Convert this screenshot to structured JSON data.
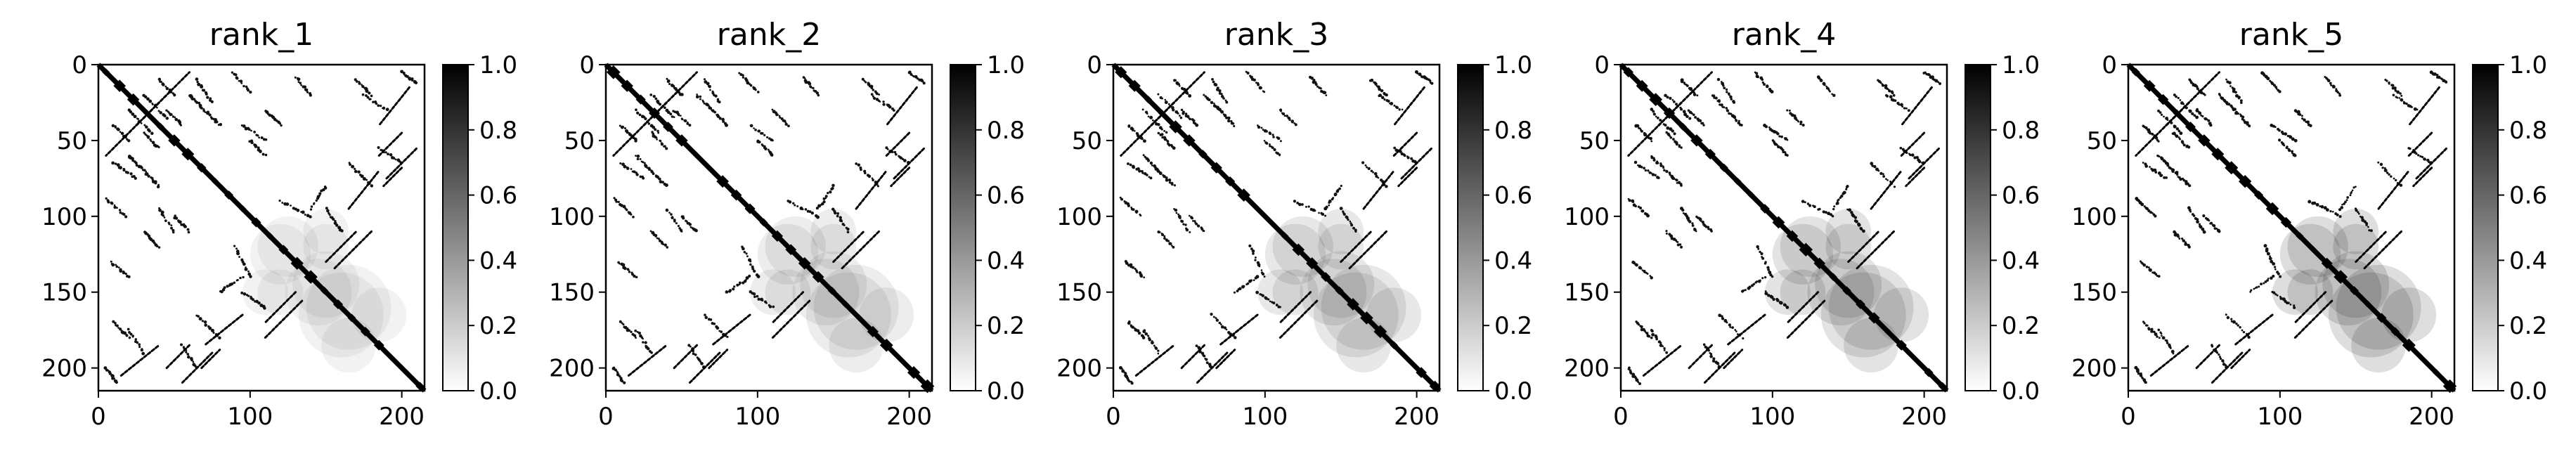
{
  "chart_data": [
    {
      "type": "heatmap",
      "title": "rank_1",
      "xlim": [
        0,
        215
      ],
      "ylim": [
        215,
        0
      ],
      "x_ticks": [
        0,
        100,
        200
      ],
      "y_ticks": [
        0,
        50,
        100,
        150,
        200
      ],
      "colorbar": {
        "range": [
          0.0,
          1.0
        ],
        "ticks": [
          "1.0",
          "0.8",
          "0.6",
          "0.4",
          "0.2",
          "0.0"
        ],
        "colormap": "gray_r"
      },
      "variant": 0
    },
    {
      "type": "heatmap",
      "title": "rank_2",
      "xlim": [
        0,
        215
      ],
      "ylim": [
        215,
        0
      ],
      "x_ticks": [
        0,
        100,
        200
      ],
      "y_ticks": [
        0,
        50,
        100,
        150,
        200
      ],
      "colorbar": {
        "range": [
          0.0,
          1.0
        ],
        "ticks": [
          "1.0",
          "0.8",
          "0.6",
          "0.4",
          "0.2",
          "0.0"
        ],
        "colormap": "gray_r"
      },
      "variant": 1
    },
    {
      "type": "heatmap",
      "title": "rank_3",
      "xlim": [
        0,
        215
      ],
      "ylim": [
        215,
        0
      ],
      "x_ticks": [
        0,
        100,
        200
      ],
      "y_ticks": [
        0,
        50,
        100,
        150,
        200
      ],
      "colorbar": {
        "range": [
          0.0,
          1.0
        ],
        "ticks": [
          "1.0",
          "0.8",
          "0.6",
          "0.4",
          "0.2",
          "0.0"
        ],
        "colormap": "gray_r"
      },
      "variant": 2
    },
    {
      "type": "heatmap",
      "title": "rank_4",
      "xlim": [
        0,
        215
      ],
      "ylim": [
        215,
        0
      ],
      "x_ticks": [
        0,
        100,
        200
      ],
      "y_ticks": [
        0,
        50,
        100,
        150,
        200
      ],
      "colorbar": {
        "range": [
          0.0,
          1.0
        ],
        "ticks": [
          "1.0",
          "0.8",
          "0.6",
          "0.4",
          "0.2",
          "0.0"
        ],
        "colormap": "gray_r"
      },
      "variant": 3
    },
    {
      "type": "heatmap",
      "title": "rank_5",
      "xlim": [
        0,
        215
      ],
      "ylim": [
        215,
        0
      ],
      "x_ticks": [
        0,
        100,
        200
      ],
      "y_ticks": [
        0,
        50,
        100,
        150,
        200
      ],
      "colorbar": {
        "range": [
          0.0,
          1.0
        ],
        "ticks": [
          "1.0",
          "0.8",
          "0.6",
          "0.4",
          "0.2",
          "0.0"
        ],
        "colormap": "gray_r"
      },
      "variant": 4
    }
  ]
}
